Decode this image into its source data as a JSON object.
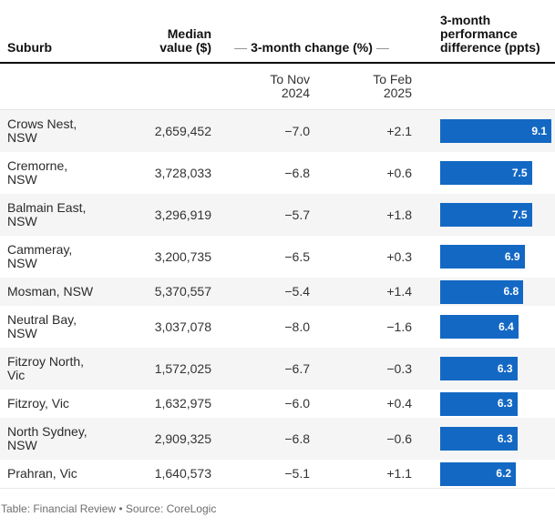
{
  "table": {
    "columns": {
      "suburb": "Suburb",
      "median": "Median\nvalue ($)",
      "dash": "—",
      "change_group": "3-month change (%)",
      "performance": "3-month\nperformance\ndifference (ppts)"
    },
    "subheaders": {
      "to_nov": "To Nov\n2024",
      "to_feb": "To Feb\n2025"
    },
    "bar_color": "#1368c4",
    "bar_max": 9.1,
    "rows": [
      {
        "suburb": "Crows Nest,\nNSW",
        "median": "2,659,452",
        "to_nov": "−7.0",
        "to_feb": "+2.1",
        "diff": 9.1
      },
      {
        "suburb": "Cremorne,\nNSW",
        "median": "3,728,033",
        "to_nov": "−6.8",
        "to_feb": "+0.6",
        "diff": 7.5
      },
      {
        "suburb": "Balmain East,\nNSW",
        "median": "3,296,919",
        "to_nov": "−5.7",
        "to_feb": "+1.8",
        "diff": 7.5
      },
      {
        "suburb": "Cammeray,\nNSW",
        "median": "3,200,735",
        "to_nov": "−6.5",
        "to_feb": "+0.3",
        "diff": 6.9
      },
      {
        "suburb": "Mosman, NSW",
        "median": "5,370,557",
        "to_nov": "−5.4",
        "to_feb": "+1.4",
        "diff": 6.8
      },
      {
        "suburb": "Neutral Bay,\nNSW",
        "median": "3,037,078",
        "to_nov": "−8.0",
        "to_feb": "−1.6",
        "diff": 6.4
      },
      {
        "suburb": "Fitzroy North,\nVic",
        "median": "1,572,025",
        "to_nov": "−6.7",
        "to_feb": "−0.3",
        "diff": 6.3
      },
      {
        "suburb": "Fitzroy, Vic",
        "median": "1,632,975",
        "to_nov": "−6.0",
        "to_feb": "+0.4",
        "diff": 6.3
      },
      {
        "suburb": "North Sydney,\nNSW",
        "median": "2,909,325",
        "to_nov": "−6.8",
        "to_feb": "−0.6",
        "diff": 6.3
      },
      {
        "suburb": "Prahran, Vic",
        "median": "1,640,573",
        "to_nov": "−5.1",
        "to_feb": "+1.1",
        "diff": 6.2
      }
    ]
  },
  "footer": {
    "text": "Table: Financial Review • Source: CoreLogic"
  },
  "chart_data": {
    "type": "table",
    "title": "",
    "columns": [
      "Suburb",
      "Median value ($)",
      "3-month change (%) To Nov 2024",
      "3-month change (%) To Feb 2025",
      "3-month performance difference (ppts)"
    ],
    "rows": [
      [
        "Crows Nest, NSW",
        2659452,
        -7.0,
        2.1,
        9.1
      ],
      [
        "Cremorne, NSW",
        3728033,
        -6.8,
        0.6,
        7.5
      ],
      [
        "Balmain East, NSW",
        3296919,
        -5.7,
        1.8,
        7.5
      ],
      [
        "Cammeray, NSW",
        3200735,
        -6.5,
        0.3,
        6.9
      ],
      [
        "Mosman, NSW",
        5370557,
        -5.4,
        1.4,
        6.8
      ],
      [
        "Neutral Bay, NSW",
        3037078,
        -8.0,
        -1.6,
        6.4
      ],
      [
        "Fitzroy North, Vic",
        1572025,
        -6.7,
        -0.3,
        6.3
      ],
      [
        "Fitzroy, Vic",
        1632975,
        -6.0,
        0.4,
        6.3
      ],
      [
        "North Sydney, NSW",
        2909325,
        -6.8,
        -0.6,
        6.3
      ],
      [
        "Prahran, Vic",
        1640573,
        -5.1,
        1.1,
        6.2
      ]
    ],
    "embedded_bar": {
      "type": "bar",
      "column": "3-month performance difference (ppts)",
      "categories": [
        "Crows Nest, NSW",
        "Cremorne, NSW",
        "Balmain East, NSW",
        "Cammeray, NSW",
        "Mosman, NSW",
        "Neutral Bay, NSW",
        "Fitzroy North, Vic",
        "Fitzroy, Vic",
        "North Sydney, NSW",
        "Prahran, Vic"
      ],
      "values": [
        9.1,
        7.5,
        7.5,
        6.9,
        6.8,
        6.4,
        6.3,
        6.3,
        6.3,
        6.2
      ],
      "xlim": [
        0,
        9.1
      ],
      "bar_color": "#1368c4",
      "value_labels": "inside-right, white"
    },
    "source_line": "Table: Financial Review • Source: CoreLogic"
  }
}
